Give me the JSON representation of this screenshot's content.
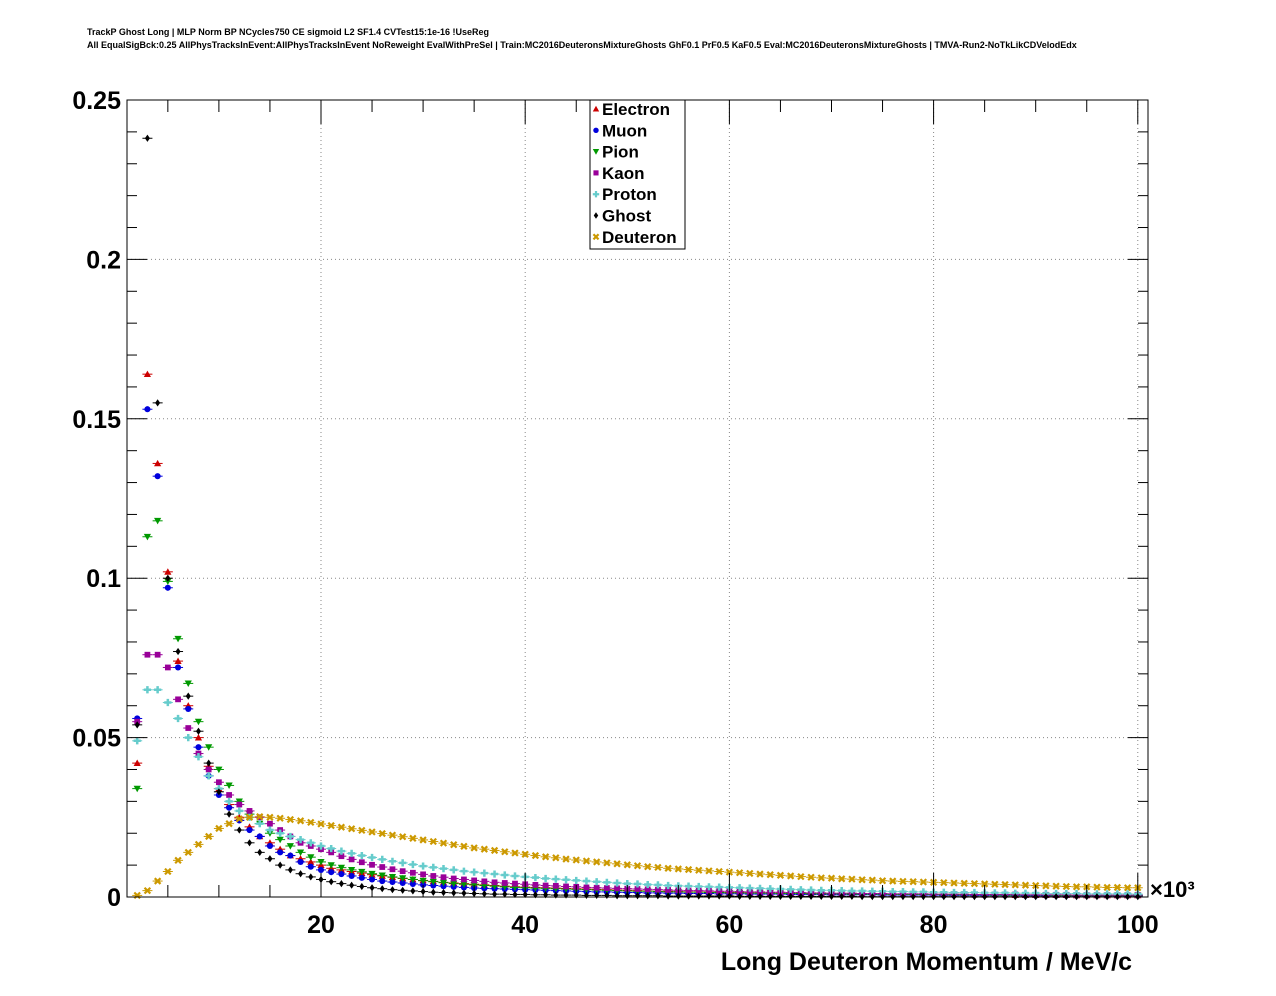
{
  "header": {
    "line1": "TrackP Ghost Long | MLP Norm BP NCycles750 CE sigmoid L2 SF1.4 CVTest15:1e-16 !UseReg",
    "line2": "All EqualSigBck:0.25 AllPhysTracksInEvent:AllPhysTracksInEvent NoReweight EvalWithPreSel | Train:MC2016DeuteronsMixtureGhosts GhF0.1 PrF0.5 KaF0.5 Eval:MC2016DeuteronsMixtureGhosts | TMVA-Run2-NoTkLikCDVelodEdx"
  },
  "chart_data": {
    "type": "scatter",
    "xlabel": "Long Deuteron Momentum / MeV/c",
    "x_multiplier": "×10³",
    "xlim": [
      1,
      101
    ],
    "ylim": [
      0,
      0.25
    ],
    "xticks": [
      20,
      40,
      60,
      80,
      100
    ],
    "yticks": [
      0,
      0.05,
      0.1,
      0.15,
      0.2,
      0.25
    ],
    "ytick_labels": [
      "0",
      "0.05",
      "0.1",
      "0.15",
      "0.2",
      "0.25"
    ],
    "grid": true,
    "legend_position": "top-center",
    "x": [
      2,
      3,
      4,
      5,
      6,
      7,
      8,
      9,
      10,
      11,
      12,
      13,
      14,
      15,
      16,
      17,
      18,
      19,
      20,
      21,
      22,
      23,
      24,
      25,
      26,
      27,
      28,
      29,
      30,
      31,
      32,
      33,
      34,
      35,
      36,
      37,
      38,
      39,
      40,
      41,
      42,
      43,
      44,
      45,
      46,
      47,
      48,
      49,
      50,
      51,
      52,
      53,
      54,
      55,
      56,
      57,
      58,
      59,
      60,
      61,
      62,
      63,
      64,
      65,
      66,
      67,
      68,
      69,
      70,
      71,
      72,
      73,
      74,
      75,
      76,
      77,
      78,
      79,
      80,
      81,
      82,
      83,
      84,
      85,
      86,
      87,
      88,
      89,
      90,
      91,
      92,
      93,
      94,
      95,
      96,
      97,
      98,
      99,
      100
    ],
    "series": [
      {
        "name": "Electron",
        "color": "#cc0000",
        "marker": "triangle-up",
        "values": [
          0.042,
          0.164,
          0.136,
          0.102,
          0.074,
          0.06,
          0.05,
          0.041,
          0.034,
          0.029,
          0.025,
          0.022,
          0.019,
          0.017,
          0.015,
          0.013,
          0.012,
          0.011,
          0.01,
          0.009,
          0.0085,
          0.008,
          0.0075,
          0.007,
          0.0066,
          0.0062,
          0.0058,
          0.0055,
          0.0052,
          0.0049,
          0.0046,
          0.0044,
          0.0042,
          0.004,
          0.0038,
          0.0036,
          0.0034,
          0.0032,
          0.0031,
          0.003,
          0.0029,
          0.0028,
          0.0027,
          0.0026,
          0.0025,
          0.0024,
          0.0023,
          0.0022,
          0.0021,
          0.002,
          0.0019,
          0.0018,
          0.0018,
          0.0017,
          0.0016,
          0.0016,
          0.0015,
          0.0015,
          0.0014,
          0.0014,
          0.0013,
          0.0013,
          0.0012,
          0.0012,
          0.0012,
          0.0011,
          0.0011,
          0.0011,
          0.001,
          0.001,
          0.001,
          0.001,
          0.0009,
          0.0009,
          0.0009,
          0.0009,
          0.0008,
          0.0008,
          0.0008,
          0.0008,
          0.0008,
          0.0007,
          0.0007,
          0.0007,
          0.0007,
          0.0007,
          0.0006,
          0.0006,
          0.0006,
          0.0006,
          0.0006,
          0.0006,
          0.0005,
          0.0005,
          0.0005,
          0.0005,
          0.0005,
          0.0005,
          0.0005
        ]
      },
      {
        "name": "Muon",
        "color": "#0000dd",
        "marker": "circle",
        "values": [
          0.056,
          0.153,
          0.132,
          0.097,
          0.072,
          0.059,
          0.047,
          0.038,
          0.032,
          0.028,
          0.024,
          0.021,
          0.019,
          0.016,
          0.014,
          0.013,
          0.011,
          0.0095,
          0.0085,
          0.0078,
          0.0072,
          0.0066,
          0.006,
          0.0055,
          0.005,
          0.0047,
          0.0044,
          0.0041,
          0.0038,
          0.0036,
          0.0034,
          0.0032,
          0.003,
          0.0028,
          0.0027,
          0.0026,
          0.0025,
          0.0024,
          0.0023,
          0.0022,
          0.0021,
          0.002,
          0.0019,
          0.0018,
          0.0017,
          0.0016,
          0.0016,
          0.0015,
          0.0014,
          0.0014,
          0.0013,
          0.0013,
          0.0012,
          0.0012,
          0.0011,
          0.0011,
          0.0011,
          0.001,
          0.001,
          0.001,
          0.0009,
          0.0009,
          0.0009,
          0.0009,
          0.0008,
          0.0008,
          0.0008,
          0.0008,
          0.0007,
          0.0007,
          0.0007,
          0.0007,
          0.0007,
          0.0006,
          0.0006,
          0.0006,
          0.0006,
          0.0006,
          0.0006,
          0.0005,
          0.0005,
          0.0005,
          0.0005,
          0.0005,
          0.0005,
          0.0005,
          0.0005,
          0.0004,
          0.0004,
          0.0004,
          0.0004,
          0.0004,
          0.0004,
          0.0004,
          0.0004,
          0.0004,
          0.0004,
          0.0004,
          0.0004
        ]
      },
      {
        "name": "Pion",
        "color": "#009900",
        "marker": "triangle-down",
        "values": [
          0.034,
          0.113,
          0.118,
          0.099,
          0.081,
          0.067,
          0.055,
          0.047,
          0.04,
          0.035,
          0.03,
          0.026,
          0.023,
          0.02,
          0.018,
          0.016,
          0.014,
          0.0125,
          0.011,
          0.01,
          0.0092,
          0.0085,
          0.0079,
          0.0073,
          0.0068,
          0.0063,
          0.0059,
          0.0055,
          0.0051,
          0.0048,
          0.0045,
          0.0042,
          0.004,
          0.0038,
          0.0036,
          0.0034,
          0.0032,
          0.003,
          0.0029,
          0.0028,
          0.0027,
          0.0026,
          0.0025,
          0.0024,
          0.0023,
          0.0022,
          0.0021,
          0.002,
          0.0019,
          0.0018,
          0.0018,
          0.0017,
          0.0016,
          0.0016,
          0.0015,
          0.0015,
          0.0014,
          0.0014,
          0.0013,
          0.0013,
          0.0012,
          0.0012,
          0.0012,
          0.0011,
          0.0011,
          0.0011,
          0.001,
          0.001,
          0.001,
          0.001,
          0.0009,
          0.0009,
          0.0009,
          0.0009,
          0.0008,
          0.0008,
          0.0008,
          0.0008,
          0.0008,
          0.0007,
          0.0007,
          0.0007,
          0.0007,
          0.0007,
          0.0006,
          0.0006,
          0.0006,
          0.0006,
          0.0006,
          0.0006,
          0.0005,
          0.0005,
          0.0005,
          0.0005,
          0.0005,
          0.0005,
          0.0005,
          0.0005,
          0.0005
        ]
      },
      {
        "name": "Kaon",
        "color": "#990099",
        "marker": "square",
        "values": [
          0.055,
          0.076,
          0.076,
          0.072,
          0.062,
          0.053,
          0.045,
          0.04,
          0.036,
          0.032,
          0.029,
          0.027,
          0.025,
          0.023,
          0.021,
          0.019,
          0.017,
          0.016,
          0.015,
          0.014,
          0.0128,
          0.0118,
          0.0109,
          0.0101,
          0.0094,
          0.0087,
          0.0081,
          0.0076,
          0.0071,
          0.0066,
          0.0062,
          0.0058,
          0.0055,
          0.0052,
          0.0049,
          0.0046,
          0.0044,
          0.0042,
          0.004,
          0.0038,
          0.0036,
          0.0035,
          0.0033,
          0.0032,
          0.003,
          0.0029,
          0.0028,
          0.0027,
          0.0026,
          0.0025,
          0.0024,
          0.0023,
          0.0022,
          0.0021,
          0.002,
          0.002,
          0.0019,
          0.0018,
          0.0018,
          0.0017,
          0.0016,
          0.0016,
          0.0015,
          0.0015,
          0.0014,
          0.0014,
          0.0013,
          0.0013,
          0.0012,
          0.0012,
          0.0012,
          0.0011,
          0.0011,
          0.0011,
          0.001,
          0.001,
          0.001,
          0.001,
          0.0009,
          0.0009,
          0.0009,
          0.0009,
          0.0008,
          0.0008,
          0.0008,
          0.0008,
          0.0008,
          0.0007,
          0.0007,
          0.0007,
          0.0007,
          0.0007,
          0.0006,
          0.0006,
          0.0006,
          0.0006,
          0.0006,
          0.0006,
          0.0006
        ]
      },
      {
        "name": "Proton",
        "color": "#66cccc",
        "marker": "cross",
        "values": [
          0.049,
          0.065,
          0.065,
          0.061,
          0.056,
          0.05,
          0.044,
          0.038,
          0.034,
          0.03,
          0.027,
          0.025,
          0.023,
          0.021,
          0.02,
          0.019,
          0.018,
          0.017,
          0.016,
          0.0152,
          0.0144,
          0.0137,
          0.013,
          0.0124,
          0.0118,
          0.0112,
          0.0107,
          0.0102,
          0.0097,
          0.0093,
          0.0089,
          0.0085,
          0.0081,
          0.0078,
          0.0075,
          0.0072,
          0.0069,
          0.0066,
          0.0063,
          0.0061,
          0.0058,
          0.0056,
          0.0054,
          0.0052,
          0.005,
          0.0048,
          0.0046,
          0.0044,
          0.0042,
          0.0041,
          0.0039,
          0.0038,
          0.0036,
          0.0035,
          0.0034,
          0.0033,
          0.0032,
          0.0031,
          0.003,
          0.0029,
          0.0028,
          0.0027,
          0.0026,
          0.0025,
          0.0024,
          0.0023,
          0.0022,
          0.0021,
          0.0021,
          0.002,
          0.0019,
          0.0019,
          0.0018,
          0.0018,
          0.0017,
          0.0017,
          0.0016,
          0.0016,
          0.0015,
          0.0015,
          0.0014,
          0.0014,
          0.0014,
          0.0013,
          0.0013,
          0.0013,
          0.0012,
          0.0012,
          0.0012,
          0.0011,
          0.0011,
          0.0011,
          0.0011,
          0.001,
          0.001,
          0.001,
          0.001,
          0.001,
          0.0009
        ]
      },
      {
        "name": "Ghost",
        "color": "#000000",
        "marker": "diamond",
        "values": [
          0.054,
          0.238,
          0.155,
          0.1,
          0.077,
          0.063,
          0.052,
          0.042,
          0.033,
          0.026,
          0.021,
          0.017,
          0.014,
          0.012,
          0.01,
          0.0085,
          0.0073,
          0.0063,
          0.0055,
          0.0048,
          0.0042,
          0.0037,
          0.0033,
          0.0029,
          0.0026,
          0.0023,
          0.0021,
          0.0019,
          0.0017,
          0.0015,
          0.0014,
          0.0013,
          0.0012,
          0.0011,
          0.001,
          0.0009,
          0.0009,
          0.0008,
          0.0008,
          0.0007,
          0.0007,
          0.0006,
          0.0006,
          0.0006,
          0.0005,
          0.0005,
          0.0005,
          0.0004,
          0.0004,
          0.0004,
          0.0004,
          0.0004,
          0.0003,
          0.0003,
          0.0003,
          0.0003,
          0.0003,
          0.0003,
          0.0003,
          0.0002,
          0.0002,
          0.0002,
          0.0002,
          0.0002,
          0.0002,
          0.0002,
          0.0002,
          0.0002,
          0.0002,
          0.0002,
          0.0002,
          0.0001,
          0.0001,
          0.0001,
          0.0001,
          0.0001,
          0.0001,
          0.0001,
          0.0001,
          0.0001,
          0.0001,
          0.0001,
          0.0001,
          0.0001,
          0.0001,
          0.0001,
          0.0001,
          0.0001,
          0.0001,
          0.0001,
          0.0001,
          0.0001,
          0.0001,
          0.0001,
          0.0001,
          0.0001,
          0.0001,
          0.0001,
          0.0001
        ]
      },
      {
        "name": "Deuteron",
        "color": "#cc9900",
        "marker": "x",
        "values": [
          0.0005,
          0.002,
          0.005,
          0.008,
          0.0115,
          0.014,
          0.0165,
          0.019,
          0.0215,
          0.023,
          0.0245,
          0.025,
          0.0252,
          0.025,
          0.0247,
          0.0243,
          0.0239,
          0.0234,
          0.0229,
          0.0224,
          0.0219,
          0.0214,
          0.0209,
          0.0204,
          0.0199,
          0.0194,
          0.0189,
          0.0184,
          0.0179,
          0.0174,
          0.0169,
          0.0164,
          0.0159,
          0.0154,
          0.015,
          0.0146,
          0.0142,
          0.0138,
          0.0134,
          0.013,
          0.0126,
          0.0123,
          0.0119,
          0.0116,
          0.0113,
          0.011,
          0.0107,
          0.0104,
          0.0101,
          0.0098,
          0.0095,
          0.0093,
          0.009,
          0.0088,
          0.0086,
          0.0084,
          0.0082,
          0.008,
          0.0078,
          0.0076,
          0.0074,
          0.0072,
          0.007,
          0.0068,
          0.0066,
          0.0064,
          0.0062,
          0.006,
          0.0059,
          0.0057,
          0.0056,
          0.0054,
          0.0053,
          0.0051,
          0.005,
          0.0049,
          0.0048,
          0.0047,
          0.0046,
          0.0045,
          0.0044,
          0.0043,
          0.0042,
          0.0041,
          0.004,
          0.0039,
          0.0038,
          0.0037,
          0.0036,
          0.0035,
          0.0034,
          0.0033,
          0.0032,
          0.0032,
          0.0031,
          0.003,
          0.003,
          0.0029,
          0.0029
        ]
      }
    ]
  }
}
